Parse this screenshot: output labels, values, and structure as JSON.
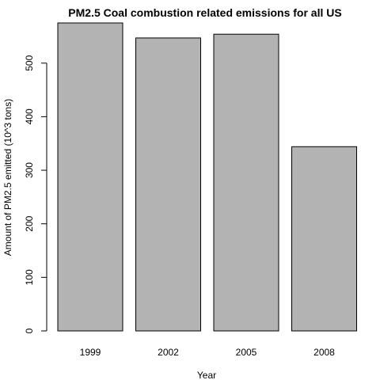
{
  "chart_data": {
    "type": "bar",
    "title": "PM2.5 Coal combustion related emissions for all US",
    "xlabel": "Year",
    "ylabel": "Amount of PM2.5 emitted (10^3 tons)",
    "categories": [
      "1999",
      "2002",
      "2005",
      "2008"
    ],
    "values": [
      575,
      547,
      554,
      344
    ],
    "ylim": [
      0,
      575
    ],
    "yticks": [
      0,
      100,
      200,
      300,
      400,
      500
    ],
    "grid": false,
    "legend": "none",
    "bar_color": "#b3b3b3"
  }
}
